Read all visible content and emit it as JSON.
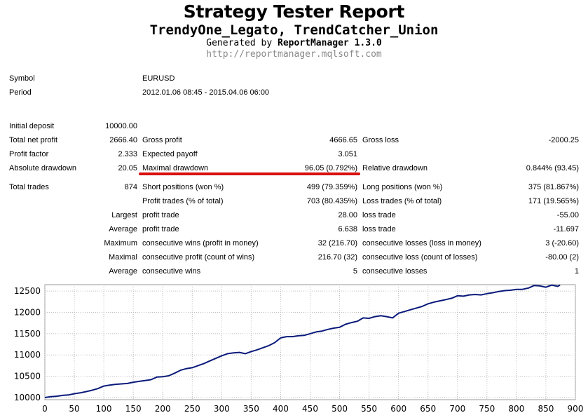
{
  "header": {
    "title": "Strategy Tester Report",
    "subtitle": "TrendyOne_Legato, TrendCatcher_Union",
    "generated_prefix": "Generated by ",
    "generated_tool": "ReportManager 1.3.0",
    "url": "http://reportmanager.mqlsoft.com"
  },
  "info": {
    "symbol_label": "Symbol",
    "symbol_value": "EURUSD",
    "period_label": "Period",
    "period_value": "2012.01.06 08:45 - 2015.04.06 06:00"
  },
  "summary": {
    "initial_deposit_label": "Initial deposit",
    "initial_deposit": "10000.00",
    "total_net_profit_label": "Total net profit",
    "total_net_profit": "2666.40",
    "gross_profit_label": "Gross profit",
    "gross_profit": "4666.65",
    "gross_loss_label": "Gross loss",
    "gross_loss": "-2000.25",
    "profit_factor_label": "Profit factor",
    "profit_factor": "2.333",
    "expected_payoff_label": "Expected payoff",
    "expected_payoff": "3.051",
    "absolute_drawdown_label": "Absolute drawdown",
    "absolute_drawdown": "20.05",
    "maximal_drawdown_label": "Maximal drawdown",
    "maximal_drawdown": "96.05 (0.792%)",
    "relative_drawdown_label": "Relative drawdown",
    "relative_drawdown": "0.844% (93.45)"
  },
  "trades": {
    "total_trades_label": "Total trades",
    "total_trades": "874",
    "short_label": "Short positions (won %)",
    "short_value": "499 (79.359%)",
    "long_label": "Long positions (won %)",
    "long_value": "375 (81.867%)",
    "profit_trades_label": "Profit trades (% of total)",
    "profit_trades": "703 (80.435%)",
    "loss_trades_label": "Loss trades (% of total)",
    "loss_trades": "171 (19.565%)",
    "largest_label": "Largest",
    "largest_profit_label": "profit trade",
    "largest_profit": "28.00",
    "largest_loss_label": "loss trade",
    "largest_loss": "-55.00",
    "average_label": "Average",
    "average_profit_label": "profit trade",
    "average_profit": "6.638",
    "average_loss_label": "loss trade",
    "average_loss": "-11.697",
    "maximum_label": "Maximum",
    "max_cons_wins_label": "consecutive wins (profit in money)",
    "max_cons_wins": "32 (216.70)",
    "max_cons_losses_label": "consecutive losses (loss in money)",
    "max_cons_losses": "3 (-20.60)",
    "maximal_label": "Maximal",
    "maximal_cons_profit_label": "consecutive profit (count of wins)",
    "maximal_cons_profit": "216.70 (32)",
    "maximal_cons_loss_label": "consecutive loss (count of losses)",
    "maximal_cons_loss": "-80.00 (2)",
    "average2_label": "Average",
    "avg_cons_wins_label": "consecutive wins",
    "avg_cons_wins": "5",
    "avg_cons_losses_label": "consecutive losses",
    "avg_cons_losses": "1"
  },
  "chart_data": {
    "type": "line",
    "title": "",
    "xlabel": "",
    "ylabel": "",
    "xlim": [
      0,
      900
    ],
    "ylim": [
      9950,
      12650
    ],
    "xticks": [
      0,
      50,
      100,
      150,
      200,
      250,
      300,
      350,
      400,
      450,
      500,
      550,
      600,
      650,
      700,
      750,
      800,
      850,
      900
    ],
    "yticks": [
      10000,
      10500,
      11000,
      11500,
      12000,
      12500
    ],
    "grid": true,
    "line_color": "#0a1a7a",
    "series": [
      {
        "x": [
          0,
          10,
          20,
          30,
          40,
          50,
          60,
          70,
          80,
          90,
          100,
          110,
          120,
          130,
          140,
          150,
          160,
          170,
          180,
          190,
          200,
          210,
          220,
          230,
          240,
          250,
          260,
          270,
          280,
          290,
          300,
          310,
          320,
          330,
          340,
          350,
          360,
          370,
          380,
          390,
          400,
          410,
          420,
          430,
          440,
          450,
          460,
          470,
          480,
          490,
          500,
          510,
          520,
          530,
          540,
          550,
          560,
          570,
          580,
          590,
          600,
          610,
          620,
          630,
          640,
          650,
          660,
          670,
          680,
          690,
          700,
          710,
          720,
          730,
          740,
          750,
          760,
          770,
          780,
          790,
          800,
          810,
          820,
          830,
          840,
          850,
          860,
          870,
          874
        ],
        "y": [
          10000,
          10020,
          10030,
          10050,
          10060,
          10090,
          10110,
          10140,
          10170,
          10210,
          10270,
          10290,
          10310,
          10320,
          10330,
          10360,
          10380,
          10400,
          10420,
          10480,
          10490,
          10510,
          10570,
          10640,
          10680,
          10700,
          10750,
          10800,
          10860,
          10920,
          10980,
          11030,
          11050,
          11060,
          11030,
          11080,
          11120,
          11170,
          11220,
          11290,
          11400,
          11430,
          11430,
          11450,
          11460,
          11500,
          11540,
          11560,
          11600,
          11630,
          11650,
          11720,
          11760,
          11790,
          11870,
          11860,
          11900,
          11920,
          11900,
          11870,
          11980,
          12020,
          12060,
          12100,
          12140,
          12200,
          12240,
          12270,
          12300,
          12330,
          12390,
          12380,
          12410,
          12420,
          12410,
          12440,
          12460,
          12490,
          12510,
          12520,
          12540,
          12540,
          12570,
          12630,
          12620,
          12590,
          12640,
          12610,
          12640
        ]
      }
    ]
  }
}
